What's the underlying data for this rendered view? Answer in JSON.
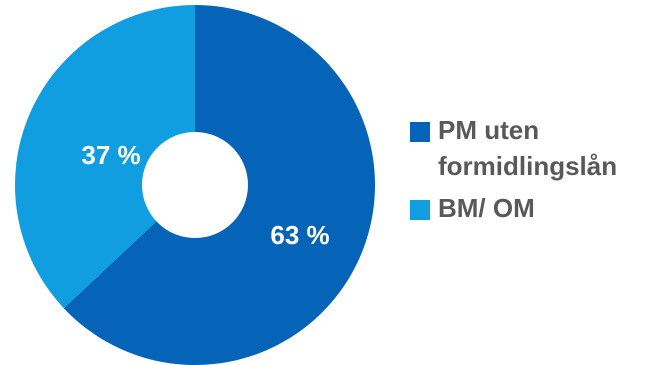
{
  "chart_data": {
    "type": "pie",
    "donut": true,
    "categories": [
      "PM uten formidlingslån",
      "BM/ OM"
    ],
    "values": [
      63,
      37
    ],
    "data_labels": [
      "63 %",
      "37 %"
    ],
    "colors": [
      "#0563b8",
      "#119ee0"
    ],
    "legend": "right"
  }
}
